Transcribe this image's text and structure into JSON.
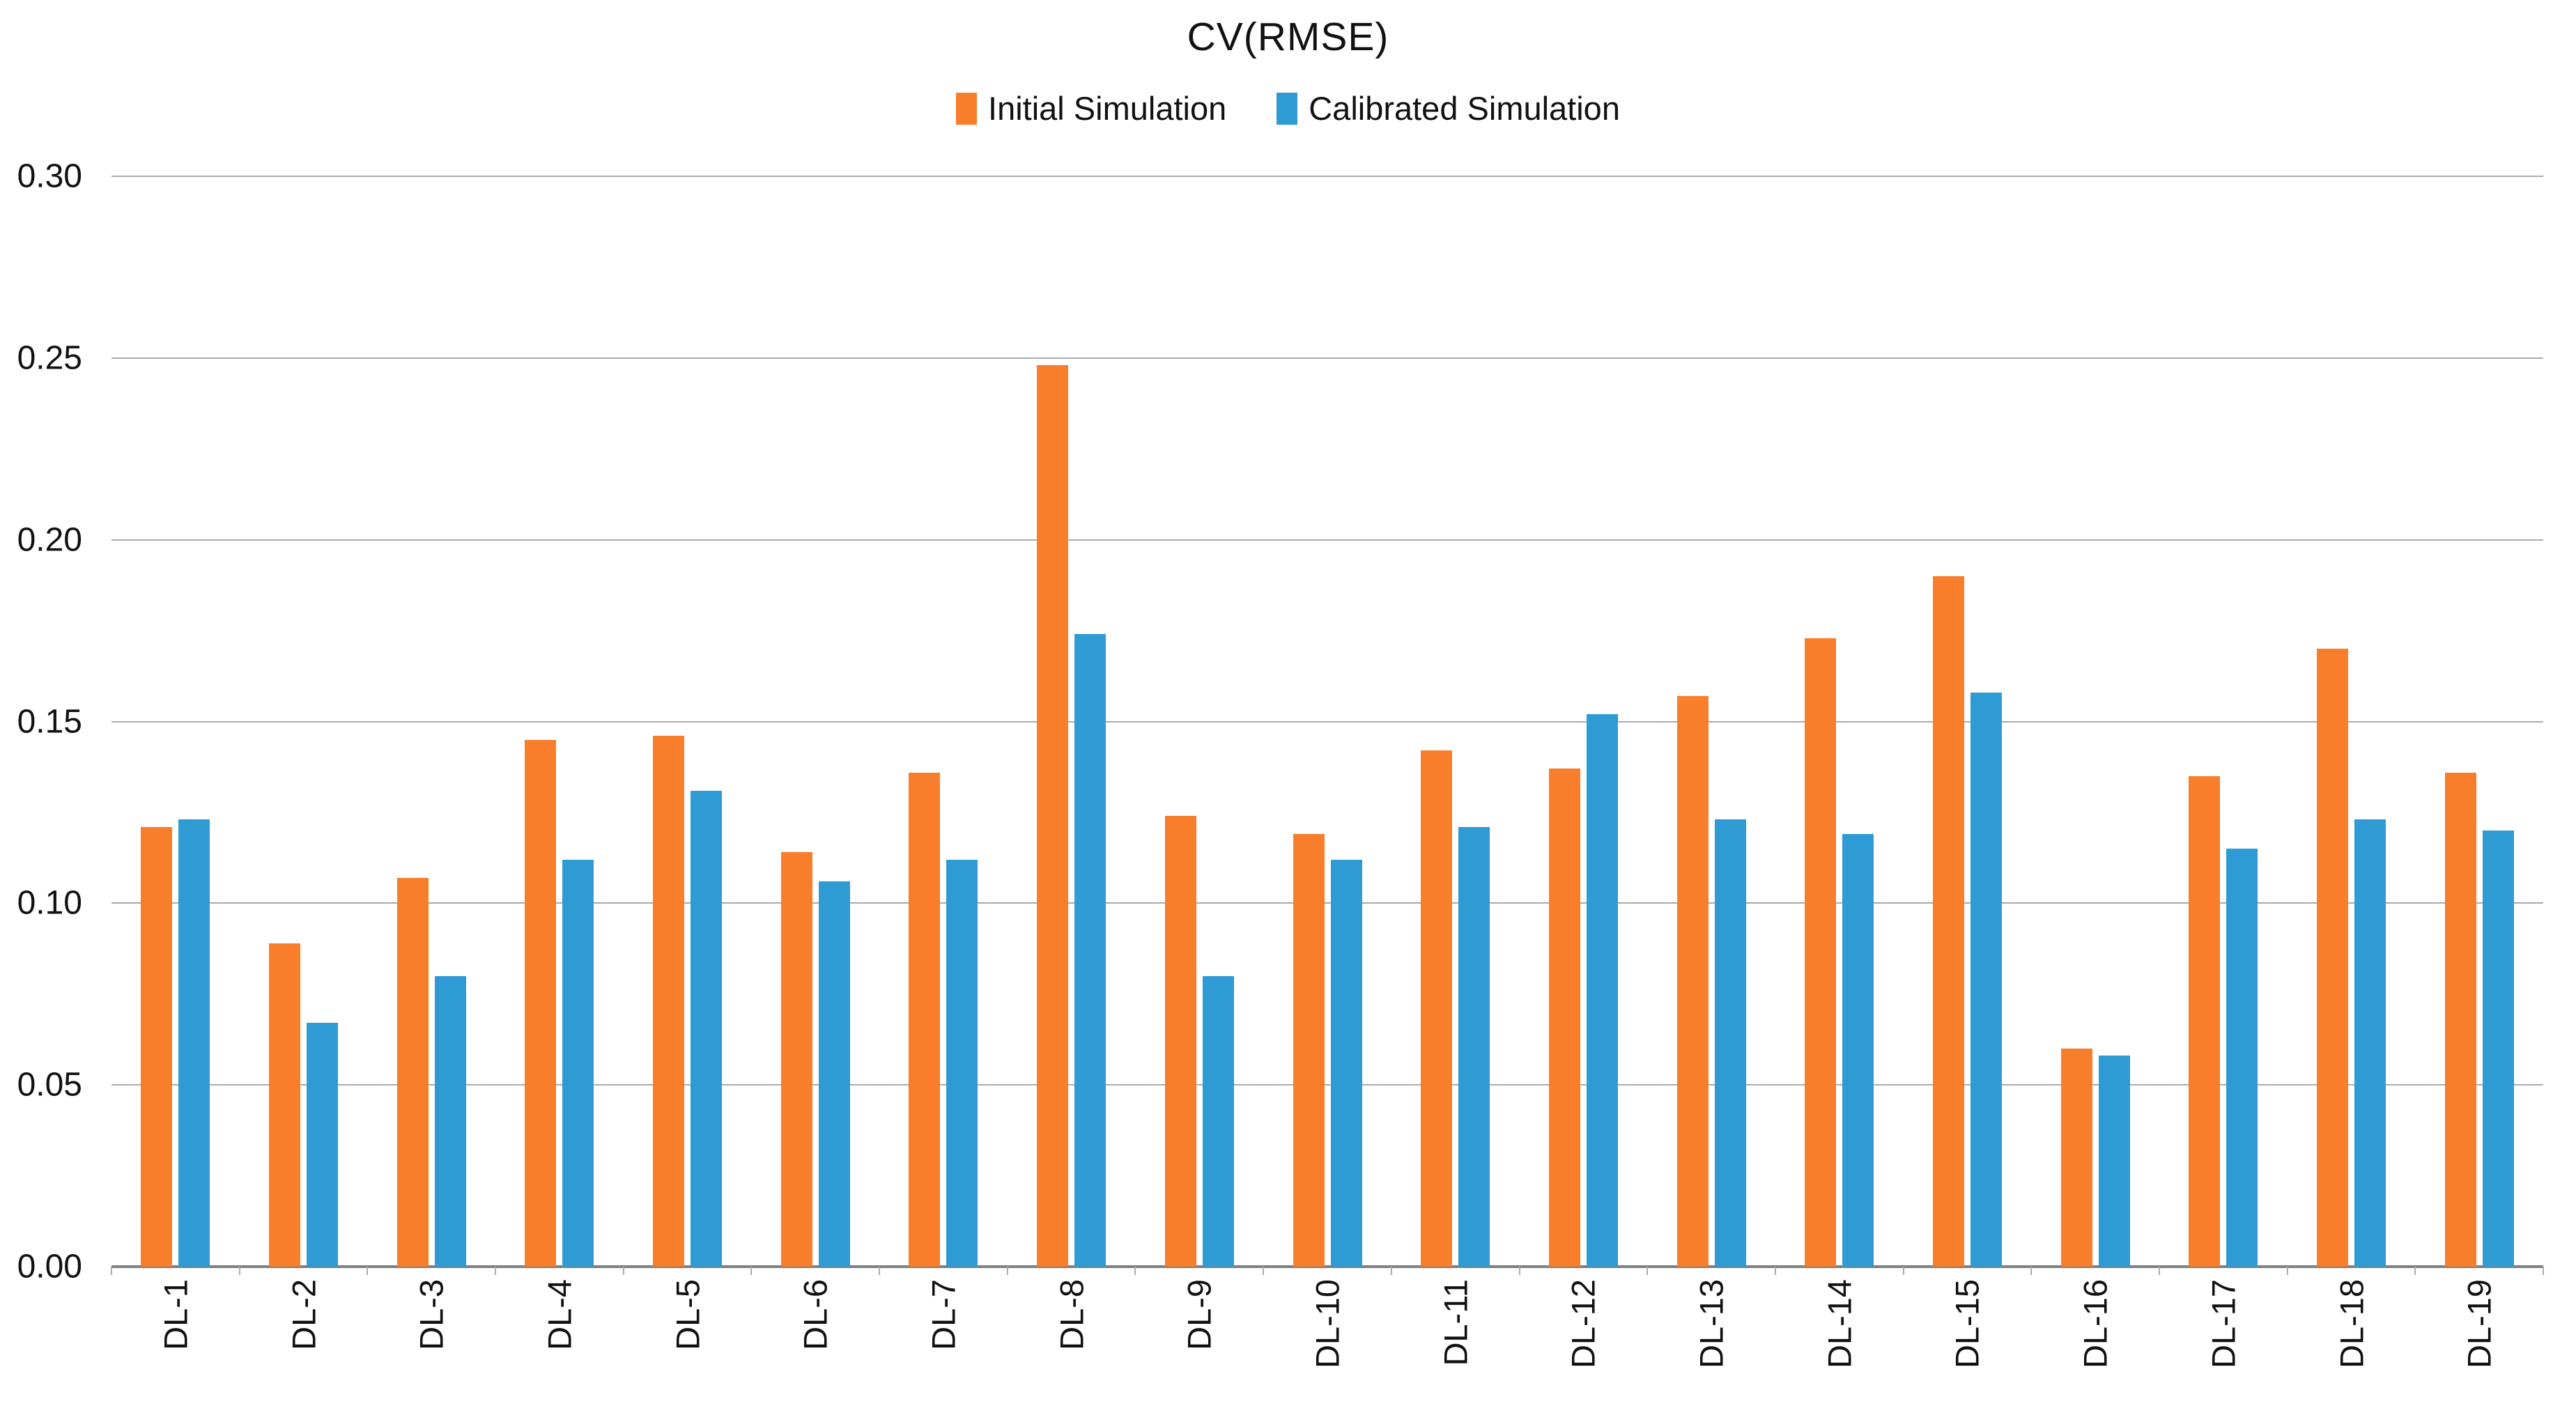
{
  "page": {
    "background": "#ffffff"
  },
  "chart_data": {
    "type": "bar",
    "title": "CV(RMSE)",
    "categories": [
      "DL-1",
      "DL-2",
      "DL-3",
      "DL-4",
      "DL-5",
      "DL-6",
      "DL-7",
      "DL-8",
      "DL-9",
      "DL-10",
      "DL-11",
      "DL-12",
      "DL-13",
      "DL-14",
      "DL-15",
      "DL-16",
      "DL-17",
      "DL-18",
      "DL-19"
    ],
    "series": [
      {
        "name": "Initial Simulation",
        "color": "#F87E2B",
        "values": [
          0.121,
          0.089,
          0.107,
          0.145,
          0.146,
          0.114,
          0.136,
          0.248,
          0.124,
          0.119,
          0.142,
          0.137,
          0.157,
          0.173,
          0.19,
          0.06,
          0.135,
          0.17,
          0.136
        ]
      },
      {
        "name": "Calibrated Simulation",
        "color": "#2E9BD5",
        "values": [
          0.123,
          0.067,
          0.08,
          0.112,
          0.131,
          0.106,
          0.112,
          0.174,
          0.08,
          0.112,
          0.121,
          0.152,
          0.123,
          0.119,
          0.158,
          0.058,
          0.115,
          0.123,
          0.12
        ]
      }
    ],
    "y_ticks": [
      "0.30",
      "0.25",
      "0.20",
      "0.15",
      "0.10",
      "0.05",
      "0.00"
    ],
    "ylim": [
      0,
      0.3
    ],
    "grid": "horizontal",
    "legend_position": "top-center",
    "x_label_rotation": -90,
    "axis_color": "#808080",
    "gridline_color": "#ababab"
  }
}
